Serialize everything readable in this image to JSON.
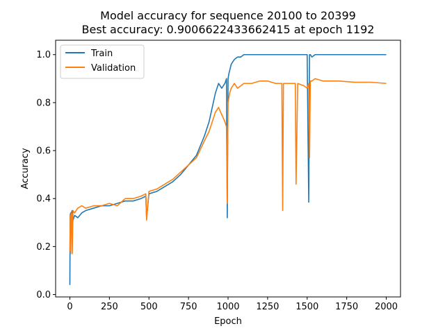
{
  "chart_data": {
    "type": "line",
    "title_line1": "Model accuracy for sequence 20100 to 20399",
    "title_line2": "Best accuracy: 0.9006622433662415 at epoch 1192",
    "xlabel": "Epoch",
    "ylabel": "Accuracy",
    "xlim": [
      -90,
      2090
    ],
    "ylim": [
      -0.01,
      1.06
    ],
    "xticks": [
      0,
      250,
      500,
      750,
      1000,
      1250,
      1500,
      1750,
      2000
    ],
    "xtick_labels": [
      "0",
      "250",
      "500",
      "750",
      "1000",
      "1250",
      "1500",
      "1750",
      "2000"
    ],
    "yticks": [
      0.0,
      0.2,
      0.4,
      0.6,
      0.8,
      1.0
    ],
    "ytick_labels": [
      "0.0",
      "0.2",
      "0.4",
      "0.6",
      "0.8",
      "1.0"
    ],
    "legend_position": "top-left",
    "grid": false,
    "series": [
      {
        "name": "Train",
        "color": "#1f77b4",
        "x": [
          0,
          2,
          5,
          10,
          15,
          20,
          30,
          50,
          75,
          100,
          150,
          200,
          250,
          300,
          350,
          400,
          450,
          480,
          485,
          500,
          550,
          600,
          650,
          700,
          750,
          800,
          850,
          880,
          900,
          920,
          940,
          960,
          980,
          990,
          995,
          1000,
          1005,
          1020,
          1040,
          1060,
          1080,
          1100,
          1150,
          1200,
          1250,
          1300,
          1350,
          1400,
          1450,
          1500,
          1510,
          1515,
          1520,
          1530,
          1550,
          1600,
          1700,
          1800,
          1900,
          2000
        ],
        "y": [
          0.04,
          0.33,
          0.34,
          0.34,
          0.35,
          0.31,
          0.33,
          0.32,
          0.34,
          0.35,
          0.36,
          0.37,
          0.37,
          0.38,
          0.39,
          0.39,
          0.4,
          0.41,
          0.32,
          0.42,
          0.43,
          0.45,
          0.47,
          0.5,
          0.54,
          0.58,
          0.66,
          0.72,
          0.78,
          0.84,
          0.88,
          0.86,
          0.88,
          0.9,
          0.32,
          0.9,
          0.92,
          0.96,
          0.98,
          0.99,
          0.99,
          1.0,
          1.0,
          1.0,
          1.0,
          1.0,
          1.0,
          1.0,
          1.0,
          1.0,
          0.385,
          1.0,
          1.0,
          0.99,
          1.0,
          1.0,
          1.0,
          1.0,
          1.0,
          1.0
        ]
      },
      {
        "name": "Validation",
        "color": "#ff7f0e",
        "x": [
          0,
          3,
          5,
          8,
          10,
          12,
          15,
          20,
          30,
          50,
          75,
          100,
          150,
          200,
          250,
          300,
          350,
          400,
          450,
          480,
          485,
          500,
          550,
          600,
          650,
          700,
          750,
          800,
          850,
          880,
          900,
          920,
          940,
          960,
          980,
          990,
          995,
          1000,
          1010,
          1020,
          1040,
          1060,
          1080,
          1100,
          1150,
          1200,
          1250,
          1300,
          1340,
          1345,
          1350,
          1400,
          1425,
          1430,
          1440,
          1480,
          1500,
          1510,
          1515,
          1520,
          1530,
          1550,
          1600,
          1700,
          1800,
          1900,
          2000
        ],
        "y": [
          0.18,
          0.33,
          0.17,
          0.34,
          0.3,
          0.33,
          0.17,
          0.35,
          0.34,
          0.36,
          0.37,
          0.36,
          0.37,
          0.37,
          0.38,
          0.37,
          0.4,
          0.4,
          0.41,
          0.42,
          0.31,
          0.43,
          0.44,
          0.46,
          0.48,
          0.51,
          0.54,
          0.57,
          0.64,
          0.68,
          0.72,
          0.76,
          0.78,
          0.75,
          0.72,
          0.7,
          0.38,
          0.8,
          0.84,
          0.86,
          0.88,
          0.86,
          0.87,
          0.88,
          0.88,
          0.89,
          0.89,
          0.88,
          0.88,
          0.35,
          0.88,
          0.88,
          0.88,
          0.46,
          0.88,
          0.87,
          0.86,
          0.88,
          0.57,
          0.89,
          0.89,
          0.9,
          0.89,
          0.89,
          0.885,
          0.885,
          0.88
        ]
      }
    ]
  }
}
